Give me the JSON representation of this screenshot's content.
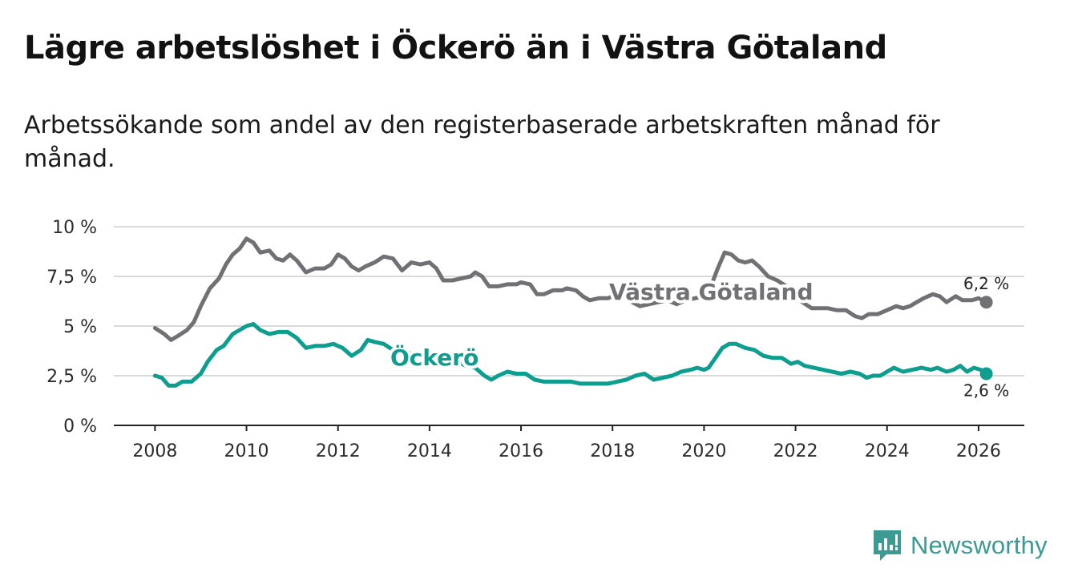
{
  "title": "Lägre arbetslöshet i Öckerö än i Västra Götaland",
  "subtitle": "Arbetssökande som andel av den registerbaserade arbetskraften månad för månad.",
  "brand": {
    "name": "Newsworthy",
    "color": "#3b9a93",
    "icon": "bar-chart-logo-icon"
  },
  "colors": {
    "vg": "#707075",
    "ockero": "#0d9e8f",
    "grid": "#d9d9d9",
    "axis": "#222222"
  },
  "chart_data": {
    "type": "line",
    "title": "Lägre arbetslöshet i Öckerö än i Västra Götaland",
    "xlabel": "",
    "ylabel": "",
    "xlim": [
      2007.1,
      2027.0
    ],
    "ylim": [
      0,
      10
    ],
    "x_ticks": [
      2008,
      2010,
      2012,
      2014,
      2016,
      2018,
      2020,
      2022,
      2024,
      2026
    ],
    "y_ticks": [
      {
        "value": 0,
        "label": "0 %"
      },
      {
        "value": 2.5,
        "label": "2,5 %"
      },
      {
        "value": 5,
        "label": "5 %"
      },
      {
        "value": 7.5,
        "label": "7,5 %"
      },
      {
        "value": 10,
        "label": "10 %"
      }
    ],
    "grid": true,
    "series": [
      {
        "name": "Västra Götaland",
        "key": "vg",
        "label": "Västra Götaland",
        "end_label": "6,2 %",
        "points": [
          [
            2008.0,
            4.9
          ],
          [
            2008.2,
            4.6
          ],
          [
            2008.35,
            4.3
          ],
          [
            2008.5,
            4.5
          ],
          [
            2008.7,
            4.8
          ],
          [
            2008.85,
            5.2
          ],
          [
            2009.0,
            6.0
          ],
          [
            2009.2,
            6.9
          ],
          [
            2009.4,
            7.4
          ],
          [
            2009.55,
            8.1
          ],
          [
            2009.7,
            8.6
          ],
          [
            2009.85,
            8.9
          ],
          [
            2010.0,
            9.4
          ],
          [
            2010.15,
            9.2
          ],
          [
            2010.3,
            8.7
          ],
          [
            2010.5,
            8.8
          ],
          [
            2010.65,
            8.4
          ],
          [
            2010.8,
            8.3
          ],
          [
            2010.95,
            8.6
          ],
          [
            2011.1,
            8.3
          ],
          [
            2011.3,
            7.7
          ],
          [
            2011.5,
            7.9
          ],
          [
            2011.7,
            7.9
          ],
          [
            2011.85,
            8.1
          ],
          [
            2012.0,
            8.6
          ],
          [
            2012.15,
            8.4
          ],
          [
            2012.3,
            8.0
          ],
          [
            2012.45,
            7.8
          ],
          [
            2012.6,
            8.0
          ],
          [
            2012.8,
            8.2
          ],
          [
            2013.0,
            8.5
          ],
          [
            2013.2,
            8.4
          ],
          [
            2013.4,
            7.8
          ],
          [
            2013.6,
            8.2
          ],
          [
            2013.8,
            8.1
          ],
          [
            2014.0,
            8.2
          ],
          [
            2014.15,
            7.9
          ],
          [
            2014.3,
            7.3
          ],
          [
            2014.5,
            7.3
          ],
          [
            2014.7,
            7.4
          ],
          [
            2014.9,
            7.5
          ],
          [
            2015.0,
            7.7
          ],
          [
            2015.15,
            7.5
          ],
          [
            2015.3,
            7.0
          ],
          [
            2015.5,
            7.0
          ],
          [
            2015.7,
            7.1
          ],
          [
            2015.9,
            7.1
          ],
          [
            2016.0,
            7.2
          ],
          [
            2016.2,
            7.1
          ],
          [
            2016.35,
            6.6
          ],
          [
            2016.5,
            6.6
          ],
          [
            2016.7,
            6.8
          ],
          [
            2016.9,
            6.8
          ],
          [
            2017.0,
            6.9
          ],
          [
            2017.2,
            6.8
          ],
          [
            2017.35,
            6.5
          ],
          [
            2017.5,
            6.3
          ],
          [
            2017.7,
            6.4
          ],
          [
            2017.9,
            6.4
          ],
          [
            2018.0,
            6.5
          ],
          [
            2018.2,
            6.5
          ],
          [
            2018.35,
            6.3
          ],
          [
            2018.6,
            6.0
          ],
          [
            2018.8,
            6.1
          ],
          [
            2019.0,
            6.2
          ],
          [
            2019.2,
            6.3
          ],
          [
            2019.4,
            6.1
          ],
          [
            2019.6,
            6.3
          ],
          [
            2019.8,
            6.4
          ],
          [
            2020.0,
            6.5
          ],
          [
            2020.15,
            7.0
          ],
          [
            2020.3,
            7.9
          ],
          [
            2020.45,
            8.7
          ],
          [
            2020.6,
            8.6
          ],
          [
            2020.75,
            8.3
          ],
          [
            2020.9,
            8.2
          ],
          [
            2021.05,
            8.3
          ],
          [
            2021.2,
            8.0
          ],
          [
            2021.4,
            7.5
          ],
          [
            2021.6,
            7.3
          ],
          [
            2021.8,
            7.0
          ],
          [
            2022.0,
            6.6
          ],
          [
            2022.15,
            6.2
          ],
          [
            2022.35,
            5.9
          ],
          [
            2022.5,
            5.9
          ],
          [
            2022.7,
            5.9
          ],
          [
            2022.9,
            5.8
          ],
          [
            2023.1,
            5.8
          ],
          [
            2023.3,
            5.5
          ],
          [
            2023.45,
            5.4
          ],
          [
            2023.6,
            5.6
          ],
          [
            2023.8,
            5.6
          ],
          [
            2024.0,
            5.8
          ],
          [
            2024.2,
            6.0
          ],
          [
            2024.35,
            5.9
          ],
          [
            2024.5,
            6.0
          ],
          [
            2024.65,
            6.2
          ],
          [
            2024.8,
            6.4
          ],
          [
            2025.0,
            6.6
          ],
          [
            2025.15,
            6.5
          ],
          [
            2025.3,
            6.2
          ],
          [
            2025.5,
            6.5
          ],
          [
            2025.65,
            6.3
          ],
          [
            2025.85,
            6.3
          ],
          [
            2026.0,
            6.4
          ],
          [
            2026.17,
            6.2
          ]
        ]
      },
      {
        "name": "Öckerö",
        "key": "ockero",
        "label": "Öckerö",
        "end_label": "2,6 %",
        "points": [
          [
            2008.0,
            2.5
          ],
          [
            2008.15,
            2.4
          ],
          [
            2008.3,
            2.0
          ],
          [
            2008.45,
            2.0
          ],
          [
            2008.6,
            2.2
          ],
          [
            2008.8,
            2.2
          ],
          [
            2009.0,
            2.6
          ],
          [
            2009.15,
            3.2
          ],
          [
            2009.35,
            3.8
          ],
          [
            2009.5,
            4.0
          ],
          [
            2009.7,
            4.6
          ],
          [
            2009.85,
            4.8
          ],
          [
            2010.0,
            5.0
          ],
          [
            2010.15,
            5.1
          ],
          [
            2010.3,
            4.8
          ],
          [
            2010.5,
            4.6
          ],
          [
            2010.7,
            4.7
          ],
          [
            2010.9,
            4.7
          ],
          [
            2011.1,
            4.4
          ],
          [
            2011.3,
            3.9
          ],
          [
            2011.5,
            4.0
          ],
          [
            2011.7,
            4.0
          ],
          [
            2011.9,
            4.1
          ],
          [
            2012.1,
            3.9
          ],
          [
            2012.3,
            3.5
          ],
          [
            2012.5,
            3.8
          ],
          [
            2012.65,
            4.3
          ],
          [
            2012.8,
            4.2
          ],
          [
            2013.0,
            4.1
          ],
          [
            2013.2,
            3.8
          ],
          [
            2013.4,
            3.8
          ],
          [
            2013.6,
            3.6
          ],
          [
            2013.8,
            3.5
          ],
          [
            2014.0,
            3.3
          ],
          [
            2014.2,
            3.1
          ],
          [
            2014.4,
            3.2
          ],
          [
            2014.6,
            3.2
          ],
          [
            2014.8,
            3.0
          ],
          [
            2015.0,
            2.9
          ],
          [
            2015.2,
            2.5
          ],
          [
            2015.35,
            2.3
          ],
          [
            2015.5,
            2.5
          ],
          [
            2015.7,
            2.7
          ],
          [
            2015.9,
            2.6
          ],
          [
            2016.1,
            2.6
          ],
          [
            2016.3,
            2.3
          ],
          [
            2016.5,
            2.2
          ],
          [
            2016.7,
            2.2
          ],
          [
            2016.9,
            2.2
          ],
          [
            2017.1,
            2.2
          ],
          [
            2017.3,
            2.1
          ],
          [
            2017.5,
            2.1
          ],
          [
            2017.7,
            2.1
          ],
          [
            2017.9,
            2.1
          ],
          [
            2018.1,
            2.2
          ],
          [
            2018.3,
            2.3
          ],
          [
            2018.5,
            2.5
          ],
          [
            2018.7,
            2.6
          ],
          [
            2018.9,
            2.3
          ],
          [
            2019.1,
            2.4
          ],
          [
            2019.3,
            2.5
          ],
          [
            2019.5,
            2.7
          ],
          [
            2019.7,
            2.8
          ],
          [
            2019.85,
            2.9
          ],
          [
            2020.0,
            2.8
          ],
          [
            2020.1,
            2.9
          ],
          [
            2020.25,
            3.4
          ],
          [
            2020.4,
            3.9
          ],
          [
            2020.55,
            4.1
          ],
          [
            2020.7,
            4.1
          ],
          [
            2020.9,
            3.9
          ],
          [
            2021.1,
            3.8
          ],
          [
            2021.3,
            3.5
          ],
          [
            2021.5,
            3.4
          ],
          [
            2021.7,
            3.4
          ],
          [
            2021.9,
            3.1
          ],
          [
            2022.05,
            3.2
          ],
          [
            2022.2,
            3.0
          ],
          [
            2022.4,
            2.9
          ],
          [
            2022.6,
            2.8
          ],
          [
            2022.8,
            2.7
          ],
          [
            2023.0,
            2.6
          ],
          [
            2023.2,
            2.7
          ],
          [
            2023.4,
            2.6
          ],
          [
            2023.55,
            2.4
          ],
          [
            2023.7,
            2.5
          ],
          [
            2023.85,
            2.5
          ],
          [
            2024.0,
            2.7
          ],
          [
            2024.15,
            2.9
          ],
          [
            2024.35,
            2.7
          ],
          [
            2024.55,
            2.8
          ],
          [
            2024.75,
            2.9
          ],
          [
            2024.95,
            2.8
          ],
          [
            2025.1,
            2.9
          ],
          [
            2025.3,
            2.7
          ],
          [
            2025.45,
            2.8
          ],
          [
            2025.6,
            3.0
          ],
          [
            2025.75,
            2.7
          ],
          [
            2025.9,
            2.9
          ],
          [
            2026.05,
            2.8
          ],
          [
            2026.17,
            2.6
          ]
        ]
      }
    ]
  }
}
